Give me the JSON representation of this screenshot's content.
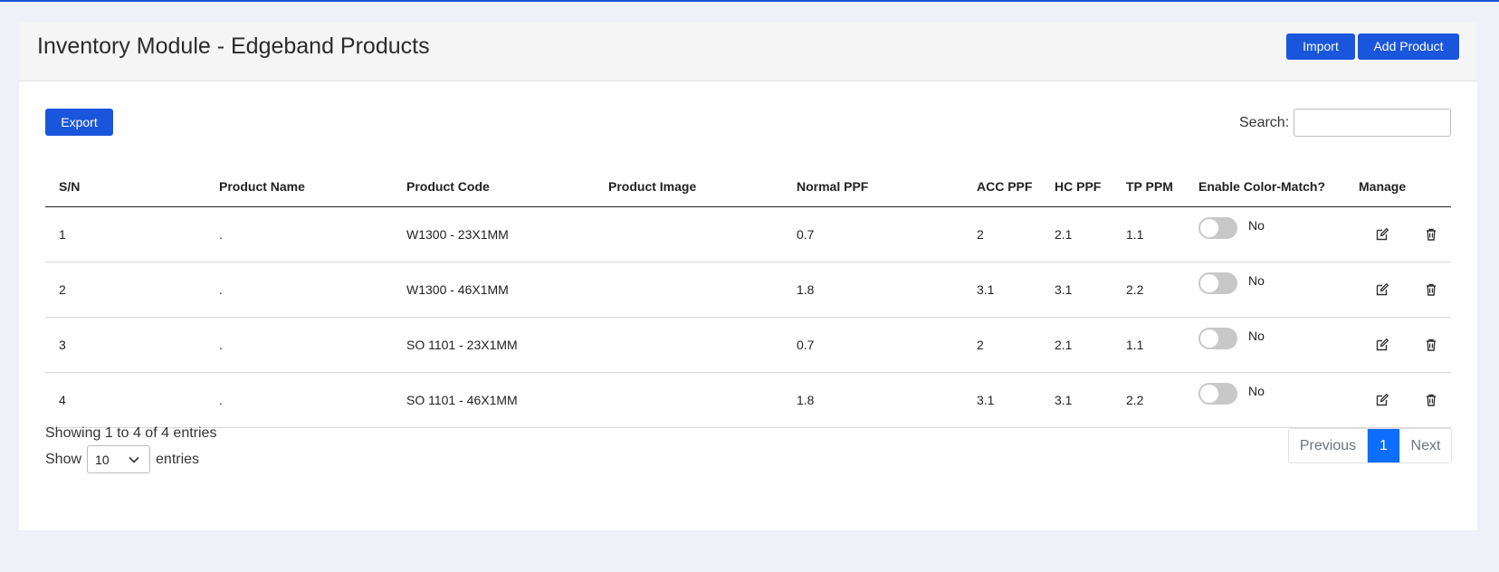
{
  "header": {
    "title": "Inventory Module - Edgeband Products",
    "import_label": "Import",
    "add_label": "Add Product"
  },
  "toolbar": {
    "export_label": "Export",
    "search_label": "Search:",
    "search_value": ""
  },
  "table": {
    "columns": [
      "S/N",
      "Product Name",
      "Product Code",
      "Product Image",
      "Normal PPF",
      "ACC PPF",
      "HC PPF",
      "TP PPM",
      "Enable Color-Match?",
      "Manage"
    ],
    "rows": [
      {
        "sn": "1",
        "name": ".",
        "code": "W1300 - 23X1MM",
        "image": "",
        "normal_ppf": "0.7",
        "acc_ppf": "2",
        "hc_ppf": "2.1",
        "tp_ppm": "1.1",
        "color_match": "No"
      },
      {
        "sn": "2",
        "name": ".",
        "code": "W1300 - 46X1MM",
        "image": "",
        "normal_ppf": "1.8",
        "acc_ppf": "3.1",
        "hc_ppf": "3.1",
        "tp_ppm": "2.2",
        "color_match": "No"
      },
      {
        "sn": "3",
        "name": ".",
        "code": "SO 1101 - 23X1MM",
        "image": "",
        "normal_ppf": "0.7",
        "acc_ppf": "2",
        "hc_ppf": "2.1",
        "tp_ppm": "1.1",
        "color_match": "No"
      },
      {
        "sn": "4",
        "name": ".",
        "code": "SO 1101 - 46X1MM",
        "image": "",
        "normal_ppf": "1.8",
        "acc_ppf": "3.1",
        "hc_ppf": "3.1",
        "tp_ppm": "2.2",
        "color_match": "No"
      }
    ]
  },
  "footer": {
    "info": "Showing 1 to 4 of 4 entries",
    "show_label": "Show",
    "page_size": "10",
    "entries_label": "entries",
    "prev_label": "Previous",
    "current_page": "1",
    "next_label": "Next"
  },
  "colors": {
    "primary": "#1a56db",
    "page_active": "#0d6efd",
    "background": "#eff0f8"
  }
}
